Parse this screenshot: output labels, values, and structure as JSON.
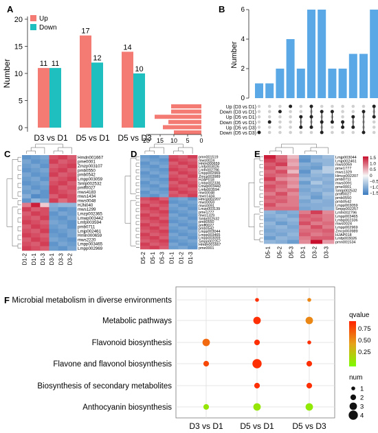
{
  "panel_labels": {
    "a": "A",
    "b": "B",
    "c": "C",
    "d": "D",
    "e": "E",
    "f": "F"
  },
  "colors": {
    "up": "#f47b73",
    "down": "#1fbfbf",
    "upset": "#5aa9e6",
    "bubble_low": "#7cfc00",
    "bubble_mid": "#e6a21a",
    "bubble_high": "#ff2200",
    "hm_low": "#3a7cc0",
    "hm_mid": "#f7f7f7",
    "hm_high": "#c8102e"
  },
  "chart_data": [
    {
      "type": "bar",
      "id": "A",
      "ylabel": "Number",
      "ylim": [
        0,
        20
      ],
      "yticks": [
        "0",
        "5",
        "10",
        "15",
        "20"
      ],
      "categories": [
        "D3 vs D1",
        "D5 vs D1",
        "D5 vs D3"
      ],
      "series": [
        {
          "name": "Up",
          "values": [
            11,
            17,
            14
          ]
        },
        {
          "name": "Down",
          "values": [
            11,
            12,
            10
          ]
        }
      ],
      "value_labels": [
        [
          "11",
          "17",
          "14"
        ],
        [
          "11",
          "12",
          "10"
        ]
      ],
      "legend": "top-left"
    },
    {
      "type": "bar",
      "id": "B",
      "subtype": "upset",
      "ylabel": "Number",
      "ylim": [
        0,
        6
      ],
      "yticks": [
        "0",
        "2",
        "4",
        "6"
      ],
      "sets": [
        "Up (D3 vs D1)",
        "Down (D3 vs D1)",
        "Up (D5 vs D1)",
        "Down (D5 vs D1)",
        "Up (D5 vs D3)",
        "Down (D5 vs D3)"
      ],
      "set_sizes": [
        11,
        11,
        17,
        12,
        14,
        10
      ],
      "set_size_ticks": [
        "20",
        "15",
        "10",
        "5",
        "0"
      ],
      "intersection_sizes": [
        1,
        1,
        2,
        4,
        2,
        6,
        6,
        2,
        2,
        3,
        3,
        6
      ],
      "intersections": [
        [
          5
        ],
        [
          3
        ],
        [
          1
        ],
        [
          0
        ],
        [
          2,
          4
        ],
        [
          0,
          2,
          4
        ],
        [
          1,
          3,
          5
        ],
        [
          1,
          3
        ],
        [
          3,
          4
        ],
        [
          2,
          4
        ],
        [
          1,
          5
        ],
        [
          0,
          2
        ]
      ]
    },
    {
      "type": "heatmap",
      "id": "C",
      "columns": [
        "D1-2",
        "D1-1",
        "D1-3",
        "D3-1",
        "D3-3",
        "D3-2"
      ],
      "rows": [
        "Hmdn001667",
        "pme0001",
        "Zmzp003107",
        "pmb0550",
        "pmb0542",
        "Lmpp003059",
        "Smlp002532",
        "pmff0027",
        "mws4183",
        "mws1434",
        "mws0048",
        "HJN040",
        "mws1299",
        "Lmzp002365",
        "Lmwp003442",
        "Lmfp003594",
        "pmb0711",
        "Lmjp002461",
        "Hmln000659",
        "mws2220",
        "Lmpp003465",
        "Lmpp002969"
      ],
      "values": [
        [
          -1.2,
          -1.1,
          -1,
          1.1,
          1.2,
          1
        ],
        [
          -1,
          -1.2,
          -1.1,
          1.2,
          1,
          1.1
        ],
        [
          -1.1,
          -1,
          -1.2,
          1,
          1.1,
          1.2
        ],
        [
          -1.2,
          -1.1,
          -1,
          1.1,
          1.2,
          1
        ],
        [
          -1,
          -1.2,
          -1.1,
          1.2,
          1,
          1.1
        ],
        [
          -1.1,
          -1,
          -1.2,
          1,
          1.1,
          1.2
        ],
        [
          -1.2,
          -1.1,
          -1,
          1.1,
          1.2,
          1
        ],
        [
          -1,
          -1.2,
          -1.1,
          1.2,
          1,
          1.1
        ],
        [
          -1.1,
          -1,
          -1.2,
          1.2,
          1.1,
          1
        ],
        [
          -0.9,
          -1.3,
          -1.2,
          1,
          1.2,
          1.1
        ],
        [
          -1.2,
          -0.8,
          -1,
          1.2,
          0.9,
          1.1
        ],
        [
          0.8,
          1.4,
          0.3,
          -0.9,
          -0.8,
          -0.8
        ],
        [
          1.2,
          1,
          1.1,
          -1,
          -1.2,
          -1.1
        ],
        [
          1,
          1.2,
          1.1,
          -1.2,
          -1,
          -1.1
        ],
        [
          1.1,
          1,
          1.2,
          -1.1,
          -1.2,
          -1
        ],
        [
          1.2,
          1.1,
          1,
          -1,
          -1.1,
          -1.2
        ],
        [
          1,
          1.2,
          1.1,
          -1.1,
          -1,
          -1.2
        ],
        [
          1.1,
          1,
          1.2,
          -1.2,
          -1.1,
          -1
        ],
        [
          1.2,
          1.1,
          1,
          -1.1,
          -1.2,
          -1
        ],
        [
          1,
          1.2,
          1.1,
          -1,
          -1.1,
          -1.2
        ],
        [
          1.1,
          1,
          1.2,
          -1.2,
          -1,
          -1.1
        ],
        [
          1.2,
          1.1,
          1,
          -1.1,
          -1.2,
          -1
        ]
      ]
    },
    {
      "type": "heatmap",
      "id": "D",
      "columns": [
        "D5-2",
        "D5-1",
        "D5-3",
        "D1-1",
        "D1-2",
        "D1-3"
      ],
      "rows": [
        "pmn001519",
        "mws0024",
        "Hmln000659",
        "Lmfp003026",
        "Lmfn002796",
        "Lmpp002969",
        "Zmcp003989",
        "HJAP018",
        "Lmbp002336",
        "Lmwp003442",
        "Lmfp003594",
        "mws0048",
        "mws1434",
        "Hmcp002207",
        "mws0059",
        "mws0091",
        "Lmzp003139",
        "pme1777",
        "mws1329",
        "Smlp002532",
        "pmb0550",
        "pmff0027",
        "pmb0542",
        "Lmpp003044",
        "Lmpp003465",
        "Lmpp003059",
        "Smpp002257",
        "Hmdn001667",
        "pme0001"
      ],
      "values": [
        [
          -1.1,
          -1.2,
          -1,
          1.1,
          1,
          1.2
        ],
        [
          -1,
          -1.1,
          -1.2,
          1.2,
          1.1,
          1
        ],
        [
          -1.2,
          -1,
          -1.1,
          1,
          1.2,
          1.1
        ],
        [
          -1.1,
          -1.2,
          -1,
          1.1,
          1,
          1.2
        ],
        [
          -1,
          -1.1,
          -1.2,
          1.2,
          1.1,
          1
        ],
        [
          -1.2,
          -1,
          -1.1,
          1,
          1.2,
          1.1
        ],
        [
          -1.1,
          -1.2,
          -1,
          1.1,
          1,
          1.2
        ],
        [
          -1,
          -1.1,
          -1.2,
          1.2,
          1.1,
          1
        ],
        [
          -1.2,
          -1,
          -1.1,
          1,
          1.2,
          1.1
        ],
        [
          -1.1,
          -1.2,
          -1,
          1.1,
          1,
          1.2
        ],
        [
          -1,
          -1.1,
          -1.2,
          1.2,
          1.1,
          1
        ],
        [
          -1.2,
          -1,
          -1.1,
          1,
          1.2,
          1.1
        ],
        [
          -1.1,
          -1.2,
          -1,
          1.1,
          1,
          1.2
        ],
        [
          1.1,
          1.2,
          1,
          -1.1,
          -1,
          -1.2
        ],
        [
          1,
          1.1,
          1.2,
          -1.2,
          -1.1,
          -1
        ],
        [
          1.2,
          1,
          1.1,
          -1,
          -1.2,
          -1.1
        ],
        [
          1.1,
          1.2,
          1,
          -1.1,
          -1,
          -1.2
        ],
        [
          1,
          1.1,
          1.2,
          -1.2,
          -1.1,
          -1
        ],
        [
          1.2,
          1,
          1.1,
          -1,
          -1.2,
          -1.1
        ],
        [
          1.1,
          1.2,
          1,
          -1.1,
          -1,
          -1.2
        ],
        [
          1,
          1.1,
          1.2,
          -1.2,
          -1.1,
          -1
        ],
        [
          1.2,
          1,
          1.1,
          -1,
          -1.2,
          -1.1
        ],
        [
          1.1,
          1.2,
          1,
          -1.1,
          -1,
          -1.2
        ],
        [
          1,
          1.1,
          1.2,
          -1.2,
          -1.1,
          -1
        ],
        [
          1.2,
          1,
          1.1,
          -1,
          -1.2,
          -1.1
        ],
        [
          1.1,
          1.2,
          1,
          -1.1,
          -1,
          -1.2
        ],
        [
          1,
          1.1,
          1.2,
          -1.2,
          -1.1,
          -1
        ],
        [
          1.2,
          1,
          1.1,
          -1,
          -1.2,
          -1.1
        ],
        [
          1.1,
          1.2,
          1,
          -1.1,
          -1,
          -1.2
        ]
      ]
    },
    {
      "type": "heatmap",
      "id": "E",
      "columns": [
        "D5-1",
        "D5-2",
        "D5-3",
        "D3-1",
        "D3-2",
        "D3-3"
      ],
      "rows": [
        "Lmjp003044",
        "Lmjp002461",
        "mws0059",
        "pme1777",
        "mws1329",
        "Hmcp002207",
        "pmb0711",
        "mws0091",
        "pme0001",
        "Smlp002532",
        "pmff0027",
        "pmb0550",
        "pmb0542",
        "Lmpp003059",
        "Smpp002257",
        "Lmfn002796",
        "Lmpp003465",
        "Lmbp002336",
        "mws0024",
        "Lmpp002969",
        "Zmcp003989",
        "HJAP018",
        "Lmfp003026",
        "pmn001534"
      ],
      "values": [
        [
          1.4,
          0.9,
          0.4,
          -1.1,
          -0.9,
          -0.7
        ],
        [
          1.2,
          1,
          0.6,
          -1.2,
          -0.8,
          -0.8
        ],
        [
          1,
          1.2,
          0.5,
          -0.9,
          -1,
          -0.8
        ],
        [
          1.1,
          0.8,
          0.7,
          -1,
          -1.1,
          -0.5
        ],
        [
          0.9,
          1.1,
          0.4,
          -1.2,
          -0.7,
          -0.5
        ],
        [
          1,
          0.9,
          0.8,
          -1,
          -0.8,
          -0.9
        ],
        [
          1.2,
          0.7,
          0.6,
          -0.8,
          -0.9,
          -0.8
        ],
        [
          0.9,
          1,
          0.7,
          -1.1,
          -0.6,
          -0.9
        ],
        [
          1.1,
          0.9,
          0.6,
          -0.9,
          -0.9,
          -0.8
        ],
        [
          1,
          0.8,
          0.9,
          -1,
          -0.8,
          -0.9
        ],
        [
          0.8,
          1.1,
          0.7,
          -0.9,
          -1,
          -0.7
        ],
        [
          1,
          0.9,
          0.8,
          -0.8,
          -1.1,
          -0.8
        ],
        [
          0.9,
          1,
          0.8,
          -1,
          -0.8,
          -0.9
        ],
        [
          1.1,
          0.8,
          0.8,
          -0.9,
          -0.9,
          -0.9
        ],
        [
          0.9,
          0.9,
          0.9,
          -1,
          -0.9,
          -0.8
        ],
        [
          -0.8,
          -1,
          -0.9,
          0.8,
          1.2,
          0.7
        ],
        [
          -0.9,
          -0.8,
          -1,
          1,
          0.9,
          0.8
        ],
        [
          -1,
          -0.9,
          -0.8,
          0.9,
          1,
          0.8
        ],
        [
          -0.8,
          -1.1,
          -0.9,
          1.1,
          0.8,
          0.9
        ],
        [
          -0.9,
          -0.8,
          -1,
          0.8,
          1.1,
          0.8
        ],
        [
          -1,
          -0.9,
          -0.9,
          0.9,
          0.9,
          1
        ],
        [
          -0.9,
          -1,
          -0.8,
          1,
          0.8,
          0.9
        ],
        [
          -1.1,
          -0.8,
          -0.9,
          0.8,
          1,
          1
        ],
        [
          -0.8,
          -0.9,
          -1.1,
          0.7,
          1.5,
          0.6
        ]
      ],
      "colorbar": {
        "ticks": [
          "1.5",
          "1.0",
          "0.5",
          "0",
          "−0.5",
          "−1.0",
          "−1.5"
        ]
      }
    },
    {
      "type": "scatter",
      "id": "F",
      "subtype": "bubble",
      "columns": [
        "D3 vs D1",
        "D5 vs D1",
        "D5 vs D3"
      ],
      "rows": [
        "Microbial metabolism in diverse environments",
        "Metabolic pathways",
        "Flavonoid biosynthesis",
        "Flavone and flavonol biosynthesis",
        "Biosynthesis of secondary metabolites",
        "Anthocyanin biosynthesis"
      ],
      "points": [
        {
          "row": 0,
          "col": 1,
          "num": 1,
          "qvalue": 0.95
        },
        {
          "row": 0,
          "col": 2,
          "num": 1,
          "qvalue": 0.6
        },
        {
          "row": 1,
          "col": 1,
          "num": 3,
          "qvalue": 0.95
        },
        {
          "row": 1,
          "col": 2,
          "num": 3,
          "qvalue": 0.6
        },
        {
          "row": 2,
          "col": 0,
          "num": 3,
          "qvalue": 0.72
        },
        {
          "row": 2,
          "col": 1,
          "num": 2,
          "qvalue": 0.95
        },
        {
          "row": 2,
          "col": 2,
          "num": 1,
          "qvalue": 0.95
        },
        {
          "row": 3,
          "col": 0,
          "num": 2,
          "qvalue": 0.85
        },
        {
          "row": 3,
          "col": 1,
          "num": 4,
          "qvalue": 0.95
        },
        {
          "row": 3,
          "col": 2,
          "num": 2,
          "qvalue": 0.95
        },
        {
          "row": 4,
          "col": 1,
          "num": 2,
          "qvalue": 0.95
        },
        {
          "row": 4,
          "col": 2,
          "num": 2,
          "qvalue": 0.95
        },
        {
          "row": 5,
          "col": 0,
          "num": 2,
          "qvalue": 0.12
        },
        {
          "row": 5,
          "col": 1,
          "num": 3,
          "qvalue": 0.12
        },
        {
          "row": 5,
          "col": 2,
          "num": 3,
          "qvalue": 0.1
        }
      ],
      "qvalue_legend": {
        "title": "qvalue",
        "ticks": [
          "0.75",
          "0.50",
          "0.25"
        ]
      },
      "num_legend": {
        "title": "num",
        "items": [
          "1",
          "2",
          "3",
          "4"
        ]
      }
    }
  ]
}
